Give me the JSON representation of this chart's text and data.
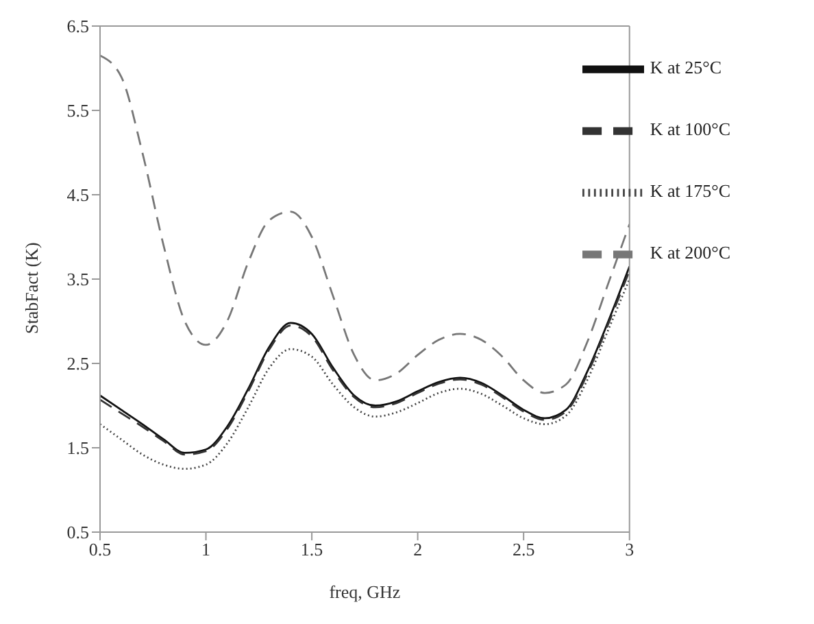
{
  "chart_data": {
    "type": "line",
    "xlabel": "freq, GHz",
    "ylabel": "StabFact (K)",
    "x": [
      0.5,
      0.6,
      0.7,
      0.8,
      0.9,
      1.0,
      1.1,
      1.2,
      1.3,
      1.4,
      1.5,
      1.6,
      1.7,
      1.8,
      1.9,
      2.0,
      2.1,
      2.2,
      2.3,
      2.4,
      2.5,
      2.6,
      2.7,
      2.8,
      2.9,
      3.0
    ],
    "series": [
      {
        "name": "K at 25°C",
        "color": "#111111",
        "line_style": "solid",
        "values": [
          2.12,
          1.95,
          1.78,
          1.6,
          1.44,
          1.48,
          1.75,
          2.2,
          2.7,
          2.98,
          2.85,
          2.45,
          2.12,
          2.0,
          2.05,
          2.17,
          2.28,
          2.33,
          2.27,
          2.12,
          1.95,
          1.85,
          1.95,
          2.4,
          3.0,
          3.65
        ]
      },
      {
        "name": "K at 100°C",
        "color": "#333333",
        "line_style": "dashed",
        "values": [
          2.07,
          1.91,
          1.75,
          1.58,
          1.42,
          1.46,
          1.72,
          2.17,
          2.67,
          2.95,
          2.82,
          2.42,
          2.1,
          1.98,
          2.03,
          2.15,
          2.26,
          2.31,
          2.25,
          2.1,
          1.93,
          1.83,
          1.93,
          2.37,
          2.97,
          3.6
        ]
      },
      {
        "name": "K at 175°C",
        "color": "#444444",
        "line_style": "dotted",
        "values": [
          1.78,
          1.6,
          1.42,
          1.3,
          1.25,
          1.3,
          1.55,
          1.98,
          2.45,
          2.67,
          2.58,
          2.25,
          1.98,
          1.87,
          1.92,
          2.03,
          2.15,
          2.2,
          2.14,
          2.0,
          1.85,
          1.78,
          1.88,
          2.3,
          2.9,
          3.5
        ]
      },
      {
        "name": "K at 200°C",
        "color": "#777777",
        "line_style": "dashed",
        "values": [
          6.15,
          5.9,
          5.0,
          3.9,
          3.0,
          2.72,
          3.0,
          3.7,
          4.2,
          4.3,
          4.0,
          3.3,
          2.6,
          2.3,
          2.38,
          2.6,
          2.78,
          2.85,
          2.78,
          2.58,
          2.3,
          2.15,
          2.25,
          2.75,
          3.45,
          4.15
        ]
      }
    ],
    "xlim": [
      0.5,
      3
    ],
    "xticks": [
      0.5,
      1,
      1.5,
      2,
      2.5,
      3
    ],
    "ylim": [
      0.5,
      6.5
    ],
    "yticks": [
      0.5,
      1.5,
      2.5,
      3.5,
      4.5,
      5.5,
      6.5
    ],
    "grid": false,
    "legend": "top right",
    "marker": "none"
  }
}
